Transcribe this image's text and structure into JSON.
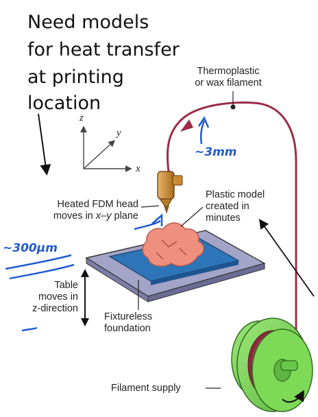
{
  "annotation": {
    "line1": "Need models",
    "line2": "for heat transfer",
    "line3": "at printing",
    "line4": "location"
  },
  "labels": {
    "filament_line1": "Thermoplastic",
    "filament_line2": "or wax filament",
    "head_line1": "Heated FDM head",
    "head_line2_pre": "moves in ",
    "head_line2_em": "x–y",
    "head_line2_post": " plane",
    "model_line1": "Plastic model",
    "model_line2": "created in",
    "model_line3": "minutes",
    "table_line1": "Table",
    "table_line2": "moves in",
    "table_line3": "z-direction",
    "foundation_line1": "Fixtureless",
    "foundation_line2": "foundation",
    "supply": "Filament supply"
  },
  "axes": {
    "z": "z",
    "y": "y",
    "x": "x"
  },
  "handwriting": {
    "filament_size": "~3mm",
    "head_size": "~300µm"
  },
  "colors": {
    "filament": "#9b2c4a",
    "spool": "#7ed957",
    "spool_dark": "#4f9a35",
    "head": "#c98c34",
    "table_top": "#9a9ac2",
    "foundation": "#2e74b8",
    "part": "#ef8f7e",
    "ink_blue": "#1f5bd1"
  }
}
